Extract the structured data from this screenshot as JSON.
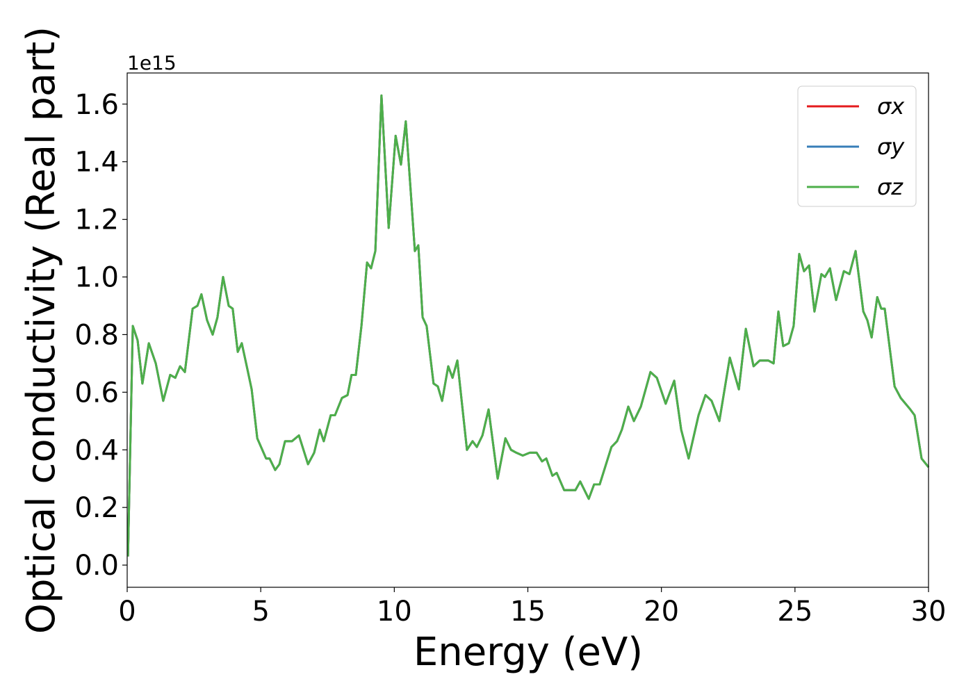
{
  "chart_data": {
    "type": "line",
    "x_label": "Energy (eV)",
    "y_label": "Optical conductivity (Real part)",
    "y_offset_label": "1e15",
    "xlim": [
      0,
      30
    ],
    "ylim": [
      -0.077,
      1.708
    ],
    "xticks": [
      0,
      5,
      10,
      15,
      20,
      25,
      30
    ],
    "yticks": [
      {
        "value": 0,
        "label": "0.0"
      },
      {
        "value": 0.2,
        "label": "0.2"
      },
      {
        "value": 0.4,
        "label": "0.4"
      },
      {
        "value": 0.6,
        "label": "0.6"
      },
      {
        "value": 0.8,
        "label": "0.8"
      },
      {
        "value": 1.0,
        "label": "1.0"
      },
      {
        "value": 1.2,
        "label": "1.2"
      },
      {
        "value": 1.4,
        "label": "1.4"
      },
      {
        "value": 1.6,
        "label": "1.6"
      }
    ],
    "legend": "upper right",
    "grid": false,
    "x": [
      0.03,
      0.21,
      0.39,
      0.57,
      0.81,
      1.07,
      1.35,
      1.61,
      1.8,
      1.98,
      2.16,
      2.45,
      2.63,
      2.78,
      2.99,
      3.2,
      3.38,
      3.59,
      3.8,
      3.95,
      4.14,
      4.29,
      4.5,
      4.66,
      4.87,
      5.2,
      5.33,
      5.54,
      5.7,
      5.91,
      6.17,
      6.43,
      6.77,
      7.0,
      7.21,
      7.36,
      7.62,
      7.78,
      8.04,
      8.25,
      8.4,
      8.56,
      8.77,
      8.98,
      9.13,
      9.29,
      9.52,
      9.79,
      10.05,
      10.25,
      10.43,
      10.59,
      10.77,
      10.9,
      11.06,
      11.21,
      11.47,
      11.63,
      11.79,
      12.02,
      12.18,
      12.36,
      12.72,
      12.93,
      13.09,
      13.3,
      13.53,
      13.87,
      14.16,
      14.37,
      14.57,
      14.81,
      15.07,
      15.33,
      15.53,
      15.69,
      15.92,
      16.08,
      16.36,
      16.63,
      16.78,
      16.96,
      17.28,
      17.48,
      17.69,
      18.13,
      18.34,
      18.52,
      18.76,
      18.97,
      19.23,
      19.59,
      19.83,
      20.16,
      20.48,
      20.74,
      21.02,
      21.39,
      21.65,
      21.88,
      22.17,
      22.56,
      22.9,
      23.16,
      23.45,
      23.68,
      24.0,
      24.2,
      24.38,
      24.56,
      24.77,
      24.95,
      25.16,
      25.34,
      25.53,
      25.73,
      25.99,
      26.12,
      26.31,
      26.54,
      26.83,
      27.04,
      27.27,
      27.56,
      27.71,
      27.87,
      28.08,
      28.23,
      28.36,
      28.73,
      28.96,
      29.32,
      29.48,
      29.74,
      30.0
    ],
    "series": [
      {
        "name": "σx",
        "color": "#e41a1c",
        "values": [
          0.03,
          0.83,
          0.78,
          0.63,
          0.77,
          0.7,
          0.57,
          0.66,
          0.65,
          0.69,
          0.67,
          0.89,
          0.9,
          0.94,
          0.85,
          0.8,
          0.86,
          1.0,
          0.9,
          0.89,
          0.74,
          0.77,
          0.68,
          0.61,
          0.44,
          0.37,
          0.37,
          0.33,
          0.35,
          0.43,
          0.43,
          0.45,
          0.35,
          0.39,
          0.47,
          0.43,
          0.52,
          0.52,
          0.58,
          0.59,
          0.66,
          0.66,
          0.83,
          1.05,
          1.03,
          1.09,
          1.63,
          1.17,
          1.49,
          1.39,
          1.54,
          1.33,
          1.09,
          1.11,
          0.86,
          0.83,
          0.63,
          0.62,
          0.57,
          0.69,
          0.65,
          0.71,
          0.4,
          0.43,
          0.41,
          0.45,
          0.54,
          0.3,
          0.44,
          0.4,
          0.39,
          0.38,
          0.39,
          0.39,
          0.36,
          0.37,
          0.31,
          0.32,
          0.26,
          0.26,
          0.26,
          0.29,
          0.23,
          0.28,
          0.28,
          0.41,
          0.43,
          0.47,
          0.55,
          0.5,
          0.55,
          0.67,
          0.65,
          0.56,
          0.64,
          0.47,
          0.37,
          0.52,
          0.59,
          0.57,
          0.5,
          0.72,
          0.61,
          0.82,
          0.69,
          0.71,
          0.71,
          0.7,
          0.88,
          0.76,
          0.77,
          0.83,
          1.08,
          1.02,
          1.04,
          0.88,
          1.01,
          1.0,
          1.03,
          0.92,
          1.02,
          1.01,
          1.09,
          0.88,
          0.85,
          0.79,
          0.93,
          0.89,
          0.89,
          0.62,
          0.58,
          0.54,
          0.52,
          0.37,
          0.34
        ]
      },
      {
        "name": "σy",
        "color": "#377eb8",
        "values": [
          0.03,
          0.83,
          0.78,
          0.63,
          0.77,
          0.7,
          0.57,
          0.66,
          0.65,
          0.69,
          0.67,
          0.89,
          0.9,
          0.94,
          0.85,
          0.8,
          0.86,
          1.0,
          0.9,
          0.89,
          0.74,
          0.77,
          0.68,
          0.61,
          0.44,
          0.37,
          0.37,
          0.33,
          0.35,
          0.43,
          0.43,
          0.45,
          0.35,
          0.39,
          0.47,
          0.43,
          0.52,
          0.52,
          0.58,
          0.59,
          0.66,
          0.66,
          0.83,
          1.05,
          1.03,
          1.09,
          1.63,
          1.17,
          1.49,
          1.39,
          1.54,
          1.33,
          1.09,
          1.11,
          0.86,
          0.83,
          0.63,
          0.62,
          0.57,
          0.69,
          0.65,
          0.71,
          0.4,
          0.43,
          0.41,
          0.45,
          0.54,
          0.3,
          0.44,
          0.4,
          0.39,
          0.38,
          0.39,
          0.39,
          0.36,
          0.37,
          0.31,
          0.32,
          0.26,
          0.26,
          0.26,
          0.29,
          0.23,
          0.28,
          0.28,
          0.41,
          0.43,
          0.47,
          0.55,
          0.5,
          0.55,
          0.67,
          0.65,
          0.56,
          0.64,
          0.47,
          0.37,
          0.52,
          0.59,
          0.57,
          0.5,
          0.72,
          0.61,
          0.82,
          0.69,
          0.71,
          0.71,
          0.7,
          0.88,
          0.76,
          0.77,
          0.83,
          1.08,
          1.02,
          1.04,
          0.88,
          1.01,
          1.0,
          1.03,
          0.92,
          1.02,
          1.01,
          1.09,
          0.88,
          0.85,
          0.79,
          0.93,
          0.89,
          0.89,
          0.62,
          0.58,
          0.54,
          0.52,
          0.37,
          0.34
        ]
      },
      {
        "name": "σz",
        "color": "#4daf4a",
        "values": [
          0.03,
          0.83,
          0.78,
          0.63,
          0.77,
          0.7,
          0.57,
          0.66,
          0.65,
          0.69,
          0.67,
          0.89,
          0.9,
          0.94,
          0.85,
          0.8,
          0.86,
          1.0,
          0.9,
          0.89,
          0.74,
          0.77,
          0.68,
          0.61,
          0.44,
          0.37,
          0.37,
          0.33,
          0.35,
          0.43,
          0.43,
          0.45,
          0.35,
          0.39,
          0.47,
          0.43,
          0.52,
          0.52,
          0.58,
          0.59,
          0.66,
          0.66,
          0.83,
          1.05,
          1.03,
          1.09,
          1.63,
          1.17,
          1.49,
          1.39,
          1.54,
          1.33,
          1.09,
          1.11,
          0.86,
          0.83,
          0.63,
          0.62,
          0.57,
          0.69,
          0.65,
          0.71,
          0.4,
          0.43,
          0.41,
          0.45,
          0.54,
          0.3,
          0.44,
          0.4,
          0.39,
          0.38,
          0.39,
          0.39,
          0.36,
          0.37,
          0.31,
          0.32,
          0.26,
          0.26,
          0.26,
          0.29,
          0.23,
          0.28,
          0.28,
          0.41,
          0.43,
          0.47,
          0.55,
          0.5,
          0.55,
          0.67,
          0.65,
          0.56,
          0.64,
          0.47,
          0.37,
          0.52,
          0.59,
          0.57,
          0.5,
          0.72,
          0.61,
          0.82,
          0.69,
          0.71,
          0.71,
          0.7,
          0.88,
          0.76,
          0.77,
          0.83,
          1.08,
          1.02,
          1.04,
          0.88,
          1.01,
          1.0,
          1.03,
          0.92,
          1.02,
          1.01,
          1.09,
          0.88,
          0.85,
          0.79,
          0.93,
          0.89,
          0.89,
          0.62,
          0.58,
          0.54,
          0.52,
          0.37,
          0.34
        ]
      }
    ]
  }
}
